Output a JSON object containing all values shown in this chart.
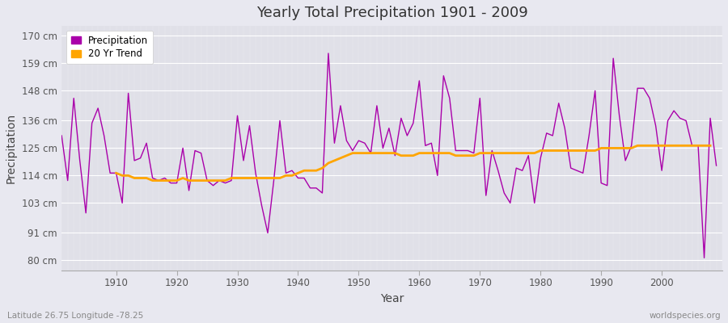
{
  "title": "Yearly Total Precipitation 1901 - 2009",
  "xlabel": "Year",
  "ylabel": "Precipitation",
  "subtitle_left": "Latitude 26.75 Longitude -78.25",
  "subtitle_right": "worldspecies.org",
  "ytick_labels": [
    "80 cm",
    "91 cm",
    "103 cm",
    "114 cm",
    "125 cm",
    "136 cm",
    "148 cm",
    "159 cm",
    "170 cm"
  ],
  "ytick_values": [
    80,
    91,
    103,
    114,
    125,
    136,
    148,
    159,
    170
  ],
  "ylim": [
    76,
    174
  ],
  "xlim": [
    1901,
    2010
  ],
  "precipitation_color": "#AA00AA",
  "trend_color": "#FFA500",
  "background_color": "#E0E0E8",
  "grid_color": "#FFFFFF",
  "fig_facecolor": "#E8E8F0",
  "years": [
    1901,
    1902,
    1903,
    1904,
    1905,
    1906,
    1907,
    1908,
    1909,
    1910,
    1911,
    1912,
    1913,
    1914,
    1915,
    1916,
    1917,
    1918,
    1919,
    1920,
    1921,
    1922,
    1923,
    1924,
    1925,
    1926,
    1927,
    1928,
    1929,
    1930,
    1931,
    1932,
    1933,
    1934,
    1935,
    1936,
    1937,
    1938,
    1939,
    1940,
    1941,
    1942,
    1943,
    1944,
    1945,
    1946,
    1947,
    1948,
    1949,
    1950,
    1951,
    1952,
    1953,
    1954,
    1955,
    1956,
    1957,
    1958,
    1959,
    1960,
    1961,
    1962,
    1963,
    1964,
    1965,
    1966,
    1967,
    1968,
    1969,
    1970,
    1971,
    1972,
    1973,
    1974,
    1975,
    1976,
    1977,
    1978,
    1979,
    1980,
    1981,
    1982,
    1983,
    1984,
    1985,
    1986,
    1987,
    1988,
    1989,
    1990,
    1991,
    1992,
    1993,
    1994,
    1995,
    1996,
    1997,
    1998,
    1999,
    2000,
    2001,
    2002,
    2003,
    2004,
    2005,
    2006,
    2007,
    2008,
    2009
  ],
  "precipitation": [
    130,
    112,
    145,
    120,
    99,
    135,
    141,
    130,
    115,
    115,
    103,
    147,
    120,
    121,
    127,
    113,
    112,
    113,
    111,
    111,
    125,
    108,
    124,
    123,
    112,
    110,
    112,
    111,
    112,
    138,
    120,
    134,
    115,
    102,
    91,
    112,
    136,
    115,
    116,
    113,
    113,
    109,
    109,
    107,
    163,
    127,
    142,
    128,
    124,
    128,
    127,
    123,
    142,
    125,
    133,
    122,
    137,
    130,
    135,
    152,
    126,
    127,
    114,
    154,
    145,
    124,
    124,
    124,
    123,
    145,
    106,
    124,
    116,
    107,
    103,
    117,
    116,
    122,
    103,
    121,
    131,
    130,
    143,
    133,
    117,
    116,
    115,
    130,
    148,
    111,
    110,
    161,
    138,
    120,
    126,
    149,
    149,
    145,
    134,
    116,
    136,
    140,
    137,
    136,
    126,
    126,
    81,
    137,
    118
  ],
  "trend": [
    null,
    null,
    null,
    null,
    null,
    null,
    null,
    null,
    null,
    115,
    114,
    114,
    113,
    113,
    113,
    112,
    112,
    112,
    112,
    112,
    113,
    112,
    112,
    112,
    112,
    112,
    112,
    112,
    113,
    113,
    113,
    113,
    113,
    113,
    113,
    113,
    113,
    114,
    114,
    115,
    116,
    116,
    116,
    117,
    119,
    120,
    121,
    122,
    123,
    123,
    123,
    123,
    123,
    123,
    123,
    123,
    122,
    122,
    122,
    123,
    123,
    123,
    123,
    123,
    123,
    122,
    122,
    122,
    122,
    123,
    123,
    123,
    123,
    123,
    123,
    123,
    123,
    123,
    123,
    124,
    124,
    124,
    124,
    124,
    124,
    124,
    124,
    124,
    124,
    125,
    125,
    125,
    125,
    125,
    125,
    126,
    126,
    126,
    126,
    126,
    126,
    126,
    126,
    126,
    126,
    126,
    126,
    126,
    null
  ],
  "xticks": [
    1910,
    1920,
    1930,
    1940,
    1950,
    1960,
    1970,
    1980,
    1990,
    2000
  ]
}
